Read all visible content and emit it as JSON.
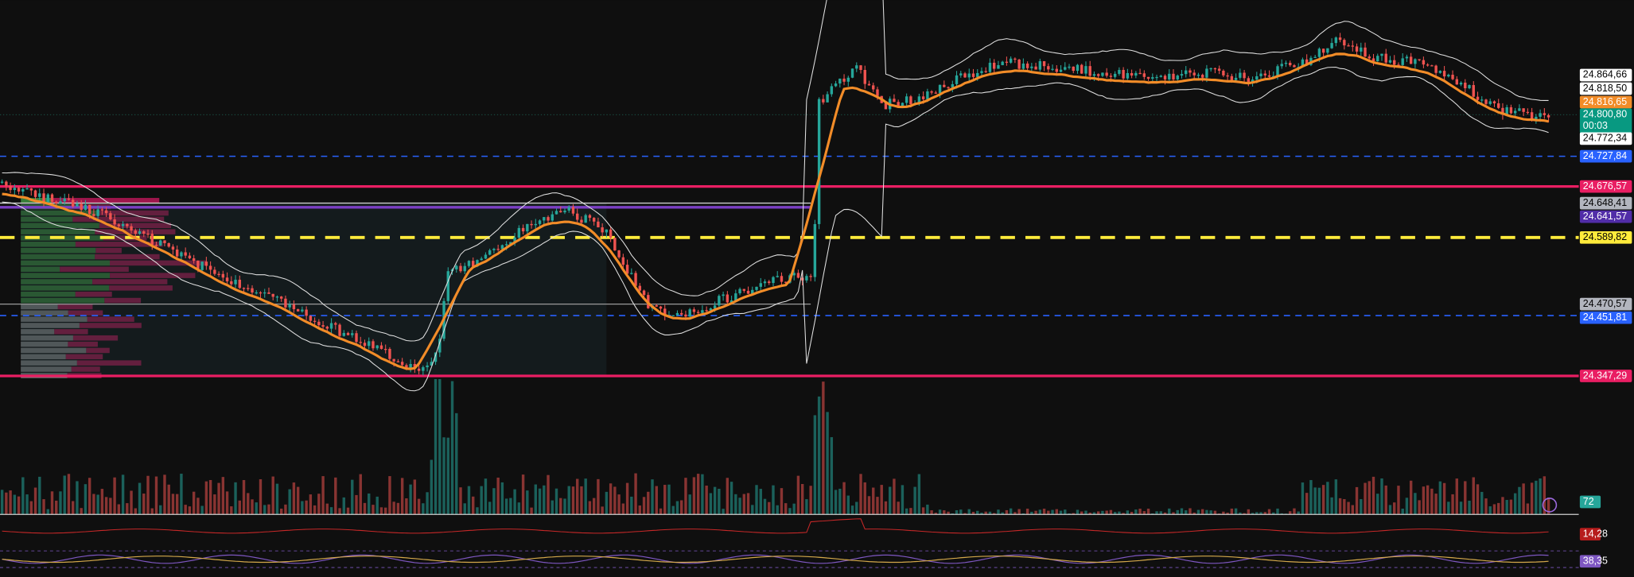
{
  "price_scale": {
    "labels": [
      "24.864,66",
      "24.818,50",
      "24.816,65",
      "24.800,80",
      "24.772,34",
      "24.727,84",
      "24.676,57",
      "24.648,41",
      "24.641,57",
      "24.589,82",
      "24.470,57",
      "24.451,81",
      "24.347,29",
      "72",
      "14,28",
      "38,35"
    ],
    "countdown": "00:03"
  }
}
